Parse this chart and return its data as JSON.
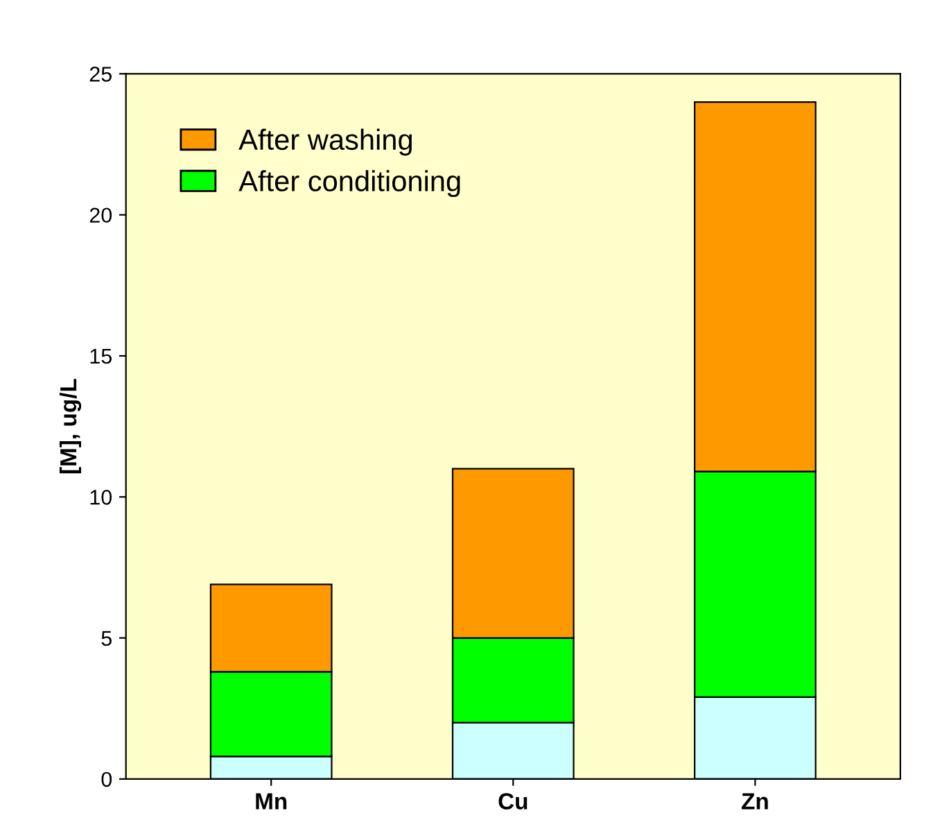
{
  "chart_data": {
    "type": "bar",
    "stacked": true,
    "ylabel": "[M], ug/L",
    "categories": [
      "Mn",
      "Cu",
      "Zn"
    ],
    "series": [
      {
        "color": "#ccffff",
        "values": [
          0.8,
          2.0,
          2.9
        ]
      },
      {
        "name": "After conditioning",
        "color": "#00ff00",
        "values": [
          3.0,
          3.0,
          8.0
        ]
      },
      {
        "name": "After washing",
        "color": "#ff9900",
        "values": [
          3.1,
          6.0,
          13.1
        ]
      }
    ],
    "ylim": [
      0,
      25
    ],
    "yticks": [
      0,
      5,
      10,
      15,
      20,
      25
    ],
    "grid": false,
    "legend": "top left"
  }
}
